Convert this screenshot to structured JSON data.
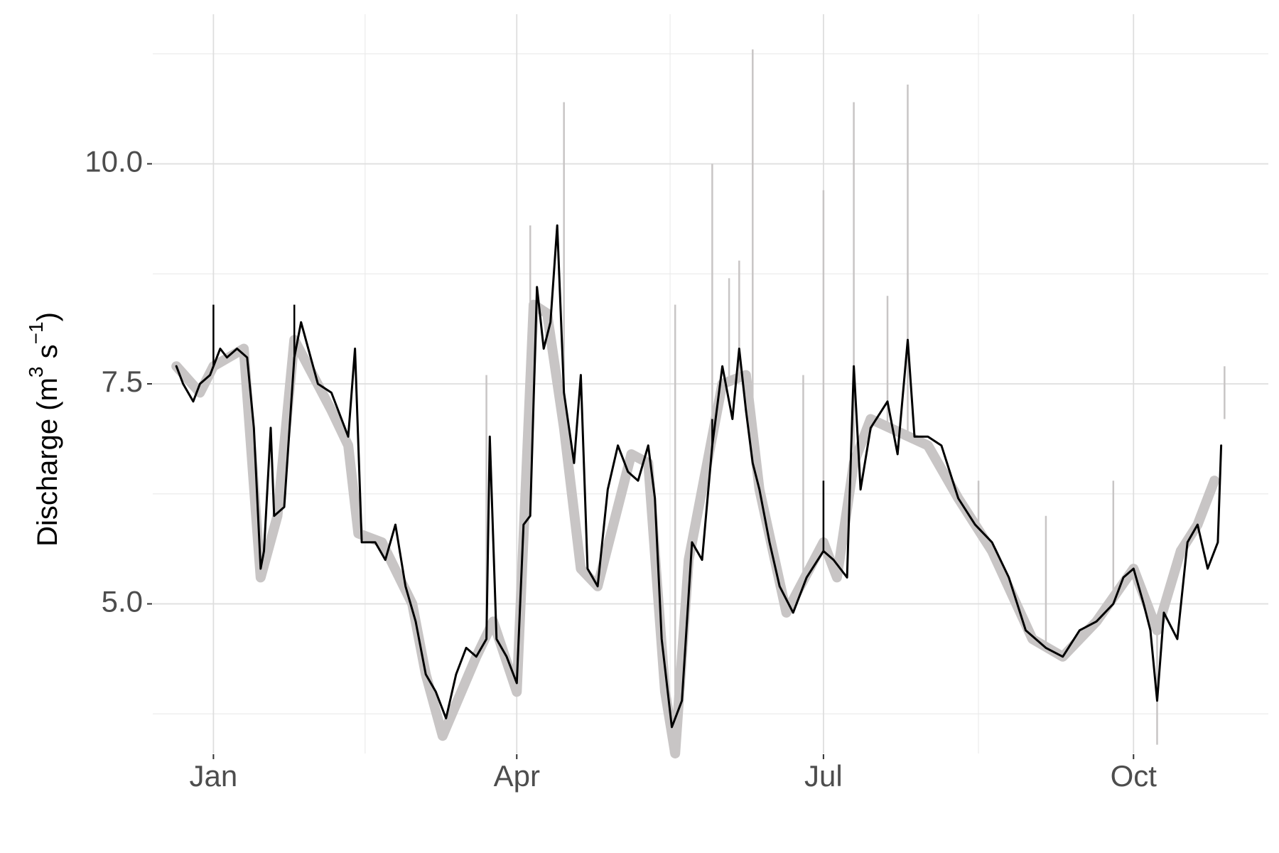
{
  "chart_data": {
    "type": "line",
    "title": "",
    "xlabel": "",
    "ylabel": {
      "prefix": "Discharge (m",
      "exp1": "3",
      "mid": " s",
      "exp2": "−1",
      "suffix": ")"
    },
    "x_ticks": [
      {
        "date": "Jan 1",
        "label": "Jan"
      },
      {
        "date": "Apr 1",
        "label": "Apr"
      },
      {
        "date": "Jul 1",
        "label": "Jul"
      },
      {
        "date": "Oct 1",
        "label": "Oct"
      }
    ],
    "y_ticks": [
      {
        "value": 5.0,
        "label": "5.0"
      },
      {
        "value": 7.5,
        "label": "7.5"
      },
      {
        "value": 10.0,
        "label": "10.0"
      }
    ],
    "xlim": [
      "Dec 13",
      "Nov 10"
    ],
    "ylim": [
      3.3,
      11.7
    ],
    "grid": true,
    "series": [
      {
        "role": "band",
        "color": "#c8c5c5",
        "points": [
          [
            "Dec 20",
            7.7
          ],
          [
            "Dec 27",
            7.4
          ],
          [
            "Jan 1",
            7.7
          ],
          [
            "Jan 10",
            7.9
          ],
          [
            "Jan 15",
            5.3
          ],
          [
            "Jan 20",
            6.0
          ],
          [
            "Jan 25",
            8.0
          ],
          [
            "Feb 5",
            7.2
          ],
          [
            "Feb 10",
            6.8
          ],
          [
            "Feb 13",
            5.8
          ],
          [
            "Feb 20",
            5.7
          ],
          [
            "Mar 1",
            5.0
          ],
          [
            "Mar 5",
            4.2
          ],
          [
            "Mar 10",
            3.5
          ],
          [
            "Mar 20",
            4.4
          ],
          [
            "Mar 25",
            4.8
          ],
          [
            "Apr 1",
            4.0
          ],
          [
            "Apr 6",
            8.4
          ],
          [
            "Apr 10",
            8.3
          ],
          [
            "Apr 15",
            7.0
          ],
          [
            "Apr 20",
            5.4
          ],
          [
            "Apr 25",
            5.2
          ],
          [
            "May 5",
            6.7
          ],
          [
            "May 10",
            6.6
          ],
          [
            "May 15",
            4.0
          ],
          [
            "May 18",
            3.3
          ],
          [
            "May 22",
            5.5
          ],
          [
            "Jun 1",
            7.5
          ],
          [
            "Jun 8",
            7.6
          ],
          [
            "Jun 12",
            6.3
          ],
          [
            "Jun 20",
            4.9
          ],
          [
            "Jul 1",
            5.7
          ],
          [
            "Jul 5",
            5.3
          ],
          [
            "Jul 10",
            6.6
          ],
          [
            "Jul 15",
            7.1
          ],
          [
            "Aug 1",
            6.8
          ],
          [
            "Aug 10",
            6.2
          ],
          [
            "Aug 20",
            5.6
          ],
          [
            "Sep 1",
            4.6
          ],
          [
            "Sep 10",
            4.4
          ],
          [
            "Sep 20",
            4.8
          ],
          [
            "Oct 1",
            5.4
          ],
          [
            "Oct 8",
            4.7
          ],
          [
            "Oct 15",
            5.6
          ],
          [
            "Oct 20",
            5.9
          ],
          [
            "Oct 25",
            6.4
          ]
        ],
        "spikes": [
          [
            "Apr 15",
            10.7
          ],
          [
            "May 29",
            10.0
          ],
          [
            "Jun 10",
            11.3
          ],
          [
            "Jul 1",
            9.7
          ],
          [
            "Jul 10",
            10.7
          ],
          [
            "Jul 26",
            10.9
          ],
          [
            "Mar 23",
            7.6
          ],
          [
            "Apr 5",
            9.3
          ],
          [
            "May 18",
            8.4
          ],
          [
            "Jun 3",
            8.7
          ],
          [
            "Jun 6",
            8.9
          ],
          [
            "Jun 25",
            7.6
          ],
          [
            "Jul 20",
            8.5
          ],
          [
            "Aug 16",
            6.4
          ],
          [
            "Sep 5",
            6.0
          ],
          [
            "Sep 25",
            6.4
          ],
          [
            "Oct 8",
            3.4
          ],
          [
            "Oct 28",
            7.1
          ]
        ]
      },
      {
        "role": "line",
        "color": "#000000",
        "points": [
          [
            "Dec 20",
            7.7
          ],
          [
            "Dec 22",
            7.5
          ],
          [
            "Dec 25",
            7.3
          ],
          [
            "Dec 27",
            7.5
          ],
          [
            "Dec 30",
            7.6
          ],
          [
            "Jan 1",
            7.7
          ],
          [
            "Jan 3",
            7.9
          ],
          [
            "Jan 5",
            7.8
          ],
          [
            "Jan 8",
            7.9
          ],
          [
            "Jan 11",
            7.8
          ],
          [
            "Jan 13",
            7.0
          ],
          [
            "Jan 15",
            5.4
          ],
          [
            "Jan 16",
            5.6
          ],
          [
            "Jan 18",
            7.0
          ],
          [
            "Jan 19",
            6.0
          ],
          [
            "Jan 22",
            6.1
          ],
          [
            "Jan 25",
            7.8
          ],
          [
            "Jan 27",
            8.2
          ],
          [
            "Feb 1",
            7.5
          ],
          [
            "Feb 5",
            7.4
          ],
          [
            "Feb 8",
            7.1
          ],
          [
            "Feb 10",
            6.9
          ],
          [
            "Feb 12",
            7.9
          ],
          [
            "Feb 14",
            5.7
          ],
          [
            "Feb 18",
            5.7
          ],
          [
            "Feb 21",
            5.5
          ],
          [
            "Feb 24",
            5.9
          ],
          [
            "Feb 27",
            5.2
          ],
          [
            "Mar 2",
            4.8
          ],
          [
            "Mar 5",
            4.2
          ],
          [
            "Mar 8",
            4.0
          ],
          [
            "Mar 11",
            3.7
          ],
          [
            "Mar 14",
            4.2
          ],
          [
            "Mar 17",
            4.5
          ],
          [
            "Mar 20",
            4.4
          ],
          [
            "Mar 23",
            4.6
          ],
          [
            "Mar 24",
            6.9
          ],
          [
            "Mar 26",
            4.6
          ],
          [
            "Mar 29",
            4.4
          ],
          [
            "Apr 1",
            4.1
          ],
          [
            "Apr 3",
            5.9
          ],
          [
            "Apr 5",
            6.0
          ],
          [
            "Apr 7",
            8.6
          ],
          [
            "Apr 9",
            7.9
          ],
          [
            "Apr 11",
            8.2
          ],
          [
            "Apr 13",
            9.3
          ],
          [
            "Apr 15",
            7.4
          ],
          [
            "Apr 18",
            6.6
          ],
          [
            "Apr 20",
            7.6
          ],
          [
            "Apr 22",
            5.4
          ],
          [
            "Apr 25",
            5.2
          ],
          [
            "Apr 28",
            6.3
          ],
          [
            "May 1",
            6.8
          ],
          [
            "May 4",
            6.5
          ],
          [
            "May 7",
            6.4
          ],
          [
            "May 10",
            6.8
          ],
          [
            "May 12",
            6.2
          ],
          [
            "May 14",
            4.6
          ],
          [
            "May 17",
            3.6
          ],
          [
            "May 20",
            3.9
          ],
          [
            "May 23",
            5.7
          ],
          [
            "May 26",
            5.5
          ],
          [
            "May 29",
            6.8
          ],
          [
            "Jun 1",
            7.7
          ],
          [
            "Jun 4",
            7.1
          ],
          [
            "Jun 6",
            7.9
          ],
          [
            "Jun 8",
            7.2
          ],
          [
            "Jun 10",
            6.6
          ],
          [
            "Jun 12",
            6.3
          ],
          [
            "Jun 15",
            5.7
          ],
          [
            "Jun 18",
            5.2
          ],
          [
            "Jun 22",
            4.9
          ],
          [
            "Jun 26",
            5.3
          ],
          [
            "Jul 1",
            5.6
          ],
          [
            "Jul 4",
            5.5
          ],
          [
            "Jul 8",
            5.3
          ],
          [
            "Jul 10",
            7.7
          ],
          [
            "Jul 12",
            6.3
          ],
          [
            "Jul 15",
            7.0
          ],
          [
            "Jul 20",
            7.3
          ],
          [
            "Jul 23",
            6.7
          ],
          [
            "Jul 26",
            8.0
          ],
          [
            "Jul 28",
            6.9
          ],
          [
            "Aug 1",
            6.9
          ],
          [
            "Aug 5",
            6.8
          ],
          [
            "Aug 10",
            6.2
          ],
          [
            "Aug 15",
            5.9
          ],
          [
            "Aug 20",
            5.7
          ],
          [
            "Aug 25",
            5.3
          ],
          [
            "Aug 30",
            4.7
          ],
          [
            "Sep 5",
            4.5
          ],
          [
            "Sep 10",
            4.4
          ],
          [
            "Sep 15",
            4.7
          ],
          [
            "Sep 20",
            4.8
          ],
          [
            "Sep 25",
            5.0
          ],
          [
            "Sep 28",
            5.3
          ],
          [
            "Oct 1",
            5.4
          ],
          [
            "Oct 4",
            5.0
          ],
          [
            "Oct 6",
            4.7
          ],
          [
            "Oct 8",
            3.9
          ],
          [
            "Oct 10",
            4.9
          ],
          [
            "Oct 14",
            4.6
          ],
          [
            "Oct 17",
            5.7
          ],
          [
            "Oct 20",
            5.9
          ],
          [
            "Oct 23",
            5.4
          ],
          [
            "Oct 26",
            5.7
          ],
          [
            "Oct 27",
            6.8
          ]
        ],
        "spikes": [
          [
            "Jan 1",
            8.4
          ],
          [
            "Jan 25",
            8.4
          ],
          [
            "May 29",
            7.1
          ],
          [
            "Jul 1",
            6.4
          ]
        ]
      }
    ]
  }
}
